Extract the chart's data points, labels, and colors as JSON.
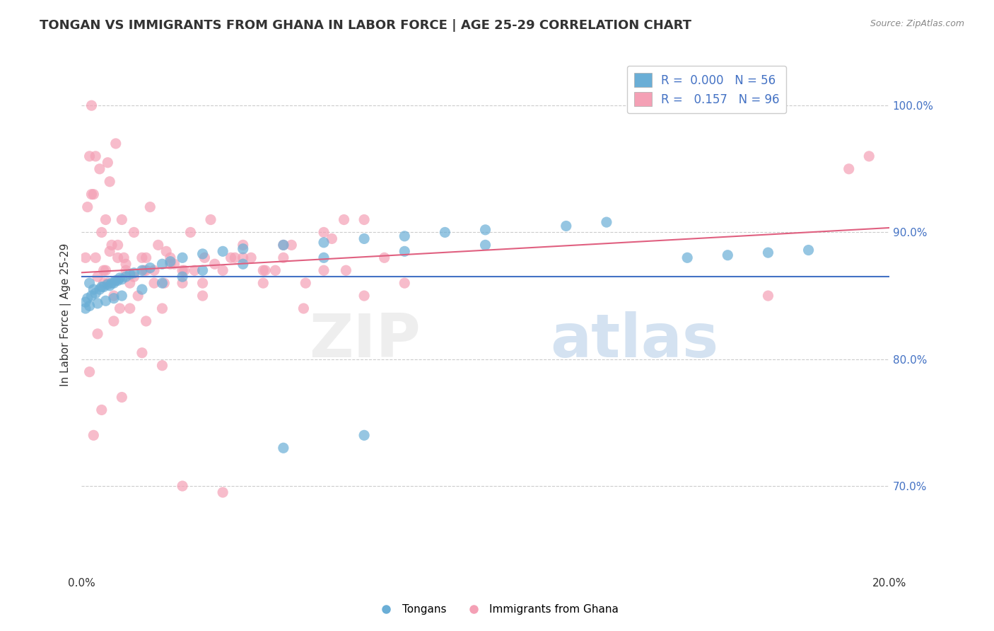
{
  "title": "TONGAN VS IMMIGRANTS FROM GHANA IN LABOR FORCE | AGE 25-29 CORRELATION CHART",
  "source": "Source: ZipAtlas.com",
  "ylabel": "In Labor Force | Age 25-29",
  "xlim": [
    0.0,
    20.0
  ],
  "ylim": [
    0.63,
    1.04
  ],
  "y_tick_labels_right": [
    "70.0%",
    "80.0%",
    "90.0%",
    "100.0%"
  ],
  "y_tick_vals_right": [
    0.7,
    0.8,
    0.9,
    1.0
  ],
  "background_color": "#ffffff",
  "grid_color": "#cccccc",
  "blue_color": "#6aaed6",
  "pink_color": "#f4a0b5",
  "blue_line_color": "#4472c4",
  "pink_line_color": "#e06080",
  "blue_R": 0.0,
  "blue_N": 56,
  "pink_R": 0.157,
  "pink_N": 96,
  "tongans_x": [
    0.2,
    0.3,
    0.5,
    0.7,
    0.8,
    0.9,
    1.0,
    1.1,
    1.2,
    1.3,
    1.5,
    1.7,
    2.0,
    2.2,
    2.5,
    3.0,
    3.5,
    4.0,
    5.0,
    6.0,
    7.0,
    8.0,
    9.0,
    10.0,
    12.0,
    13.0,
    0.1,
    0.15,
    0.25,
    0.35,
    0.45,
    0.55,
    0.65,
    0.75,
    0.85,
    0.95,
    0.1,
    0.2,
    0.4,
    0.6,
    0.8,
    1.0,
    1.5,
    2.0,
    2.5,
    3.0,
    4.0,
    6.0,
    8.0,
    10.0,
    15.0,
    16.0,
    17.0,
    18.0,
    7.0,
    5.0
  ],
  "tongans_y": [
    0.86,
    0.855,
    0.857,
    0.858,
    0.86,
    0.862,
    0.863,
    0.865,
    0.867,
    0.868,
    0.87,
    0.872,
    0.875,
    0.877,
    0.88,
    0.883,
    0.885,
    0.887,
    0.89,
    0.892,
    0.895,
    0.897,
    0.9,
    0.902,
    0.905,
    0.908,
    0.845,
    0.848,
    0.85,
    0.852,
    0.855,
    0.857,
    0.859,
    0.86,
    0.862,
    0.864,
    0.84,
    0.842,
    0.844,
    0.846,
    0.848,
    0.85,
    0.855,
    0.86,
    0.865,
    0.87,
    0.875,
    0.88,
    0.885,
    0.89,
    0.88,
    0.882,
    0.884,
    0.886,
    0.74,
    0.73
  ],
  "ghana_x": [
    0.1,
    0.15,
    0.2,
    0.25,
    0.3,
    0.35,
    0.4,
    0.45,
    0.5,
    0.55,
    0.6,
    0.65,
    0.7,
    0.75,
    0.8,
    0.85,
    0.9,
    0.95,
    1.0,
    1.1,
    1.2,
    1.3,
    1.4,
    1.5,
    1.6,
    1.7,
    1.8,
    1.9,
    2.0,
    2.2,
    2.5,
    2.7,
    3.0,
    3.2,
    3.5,
    4.0,
    4.5,
    5.0,
    5.5,
    6.0,
    6.5,
    7.0,
    7.5,
    8.0,
    2.0,
    1.5,
    1.0,
    0.5,
    0.3,
    0.2,
    0.8,
    1.2,
    2.5,
    3.0,
    4.0,
    5.0,
    6.0,
    7.0,
    2.5,
    3.5,
    0.4,
    0.6,
    0.9,
    1.1,
    1.6,
    2.1,
    2.8,
    3.3,
    4.2,
    5.2,
    6.2,
    4.5,
    0.7,
    1.3,
    2.3,
    3.8,
    0.55,
    1.8,
    2.2,
    3.7,
    0.25,
    1.6,
    4.8,
    0.35,
    0.65,
    1.05,
    1.55,
    2.05,
    2.55,
    3.05,
    4.55,
    5.55,
    6.55,
    17.0,
    19.0,
    19.5
  ],
  "ghana_y": [
    0.88,
    0.92,
    0.96,
    1.0,
    0.93,
    0.88,
    0.82,
    0.95,
    0.9,
    0.87,
    0.91,
    0.86,
    0.94,
    0.89,
    0.85,
    0.97,
    0.88,
    0.84,
    0.91,
    0.87,
    0.86,
    0.9,
    0.85,
    0.88,
    0.83,
    0.92,
    0.87,
    0.89,
    0.84,
    0.88,
    0.86,
    0.9,
    0.85,
    0.91,
    0.87,
    0.89,
    0.86,
    0.88,
    0.84,
    0.87,
    0.91,
    0.85,
    0.88,
    0.86,
    0.795,
    0.805,
    0.77,
    0.76,
    0.74,
    0.79,
    0.83,
    0.84,
    0.87,
    0.86,
    0.88,
    0.89,
    0.9,
    0.91,
    0.7,
    0.695,
    0.865,
    0.87,
    0.89,
    0.875,
    0.88,
    0.885,
    0.87,
    0.875,
    0.88,
    0.89,
    0.895,
    0.87,
    0.885,
    0.865,
    0.875,
    0.88,
    0.86,
    0.86,
    0.875,
    0.88,
    0.93,
    0.87,
    0.87,
    0.96,
    0.955,
    0.88,
    0.87,
    0.86,
    0.87,
    0.88,
    0.87,
    0.86,
    0.87,
    0.85,
    0.95,
    0.96
  ]
}
